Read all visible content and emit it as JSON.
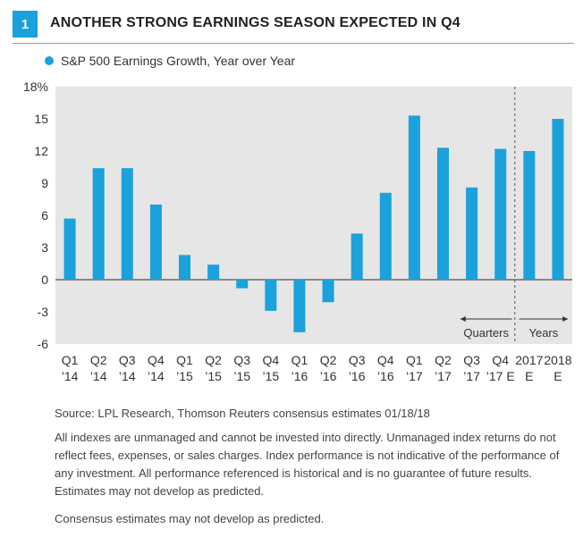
{
  "figure": {
    "number": "1",
    "title": "ANOTHER STRONG EARNINGS SEASON EXPECTED IN Q4"
  },
  "colors": {
    "accent": "#1ba1db",
    "plot_bg": "#e6e6e6"
  },
  "chart_data": {
    "type": "bar",
    "title": "ANOTHER STRONG EARNINGS SEASON EXPECTED IN Q4",
    "legend": "S&P 500 Earnings Growth, Year over Year",
    "ylabel": "%",
    "ylim": [
      -6,
      18
    ],
    "yticks": [
      "18%",
      "15",
      "12",
      "9",
      "6",
      "3",
      "0",
      "-3",
      "-6"
    ],
    "ytick_values": [
      18,
      15,
      12,
      9,
      6,
      3,
      0,
      -3,
      -6
    ],
    "categories": [
      [
        "Q1",
        "’14"
      ],
      [
        "Q2",
        "’14"
      ],
      [
        "Q3",
        "’14"
      ],
      [
        "Q4",
        "’14"
      ],
      [
        "Q1",
        "’15"
      ],
      [
        "Q2",
        "’15"
      ],
      [
        "Q3",
        "’15"
      ],
      [
        "Q4",
        "’15"
      ],
      [
        "Q1",
        "’16"
      ],
      [
        "Q2",
        "’16"
      ],
      [
        "Q3",
        "’16"
      ],
      [
        "Q4",
        "’16"
      ],
      [
        "Q1",
        "’17"
      ],
      [
        "Q2",
        "’17"
      ],
      [
        "Q3",
        "’17"
      ],
      [
        "Q4",
        "’17 E"
      ],
      [
        "2017",
        "E"
      ],
      [
        "2018",
        "E"
      ]
    ],
    "values": [
      5.7,
      10.4,
      10.4,
      7.0,
      2.3,
      1.4,
      -0.8,
      -2.9,
      -4.9,
      -2.1,
      4.3,
      8.1,
      15.3,
      12.3,
      8.6,
      12.2,
      12.0,
      15.0
    ],
    "annotations": {
      "quarters": "Quarters",
      "years": "Years"
    }
  },
  "source": "Source: LPL Research, Thomson Reuters consensus estimates   01/18/18",
  "disclaimer": "All indexes are unmanaged and cannot be invested into directly. Unmanaged index returns do not reflect fees, expenses, or sales charges. Index performance is not indicative of the performance of any investment. All performance referenced is historical and is no guarantee of future results. Estimates may not develop as predicted.",
  "consensus_note": "Consensus estimates may not develop as predicted."
}
